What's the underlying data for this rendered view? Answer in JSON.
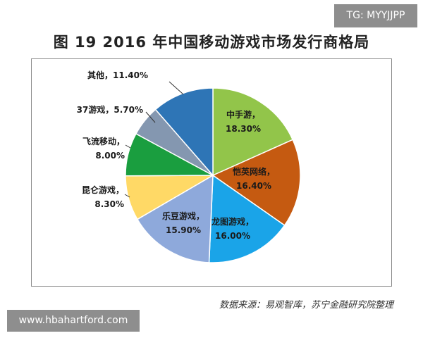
{
  "watermarks": {
    "top_right": "TG: MYYJJPP",
    "bottom_left": "www.hbahartford.com"
  },
  "title": "图 19  2016 年中国移动游戏市场发行商格局",
  "source": "数据来源：易观智库，苏宁金融研究院整理",
  "chart_data": {
    "type": "pie",
    "title": "图 19  2016 年中国移动游戏市场发行商格局",
    "slices": [
      {
        "name": "中手游",
        "value": 18.3,
        "label": "18.30%",
        "color": "#92c54a"
      },
      {
        "name": "恺英网络",
        "value": 16.4,
        "label": "16.40%",
        "color": "#c55a11"
      },
      {
        "name": "龙图游戏",
        "value": 16.0,
        "label": "16.00%",
        "color": "#1aa4e8"
      },
      {
        "name": "乐豆游戏",
        "value": 15.9,
        "label": "15.90%",
        "color": "#8ea9db"
      },
      {
        "name": "昆仑游戏",
        "value": 8.3,
        "label": "8.30%",
        "color": "#ffd966"
      },
      {
        "name": "飞流移动",
        "value": 8.0,
        "label": "8.00%",
        "color": "#1a9e3f"
      },
      {
        "name": "37游戏",
        "value": 5.7,
        "label": "5.70%",
        "color": "#8497b0"
      },
      {
        "name": "其他",
        "value": 11.4,
        "label": "11.40%",
        "color": "#2e75b6"
      }
    ],
    "start": "12 o'clock",
    "direction": "clockwise",
    "legend": "none",
    "label_style": "name, value% next to slice"
  }
}
